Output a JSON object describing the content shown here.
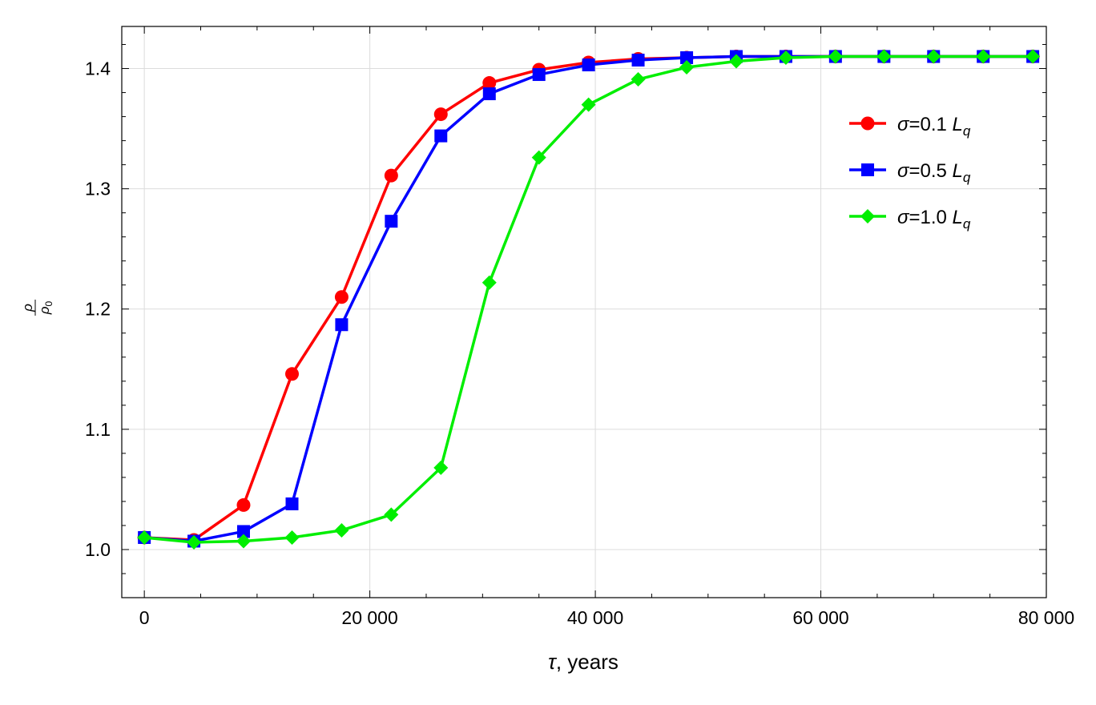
{
  "chart_data": {
    "type": "line",
    "xlabel": {
      "symbol": "τ",
      "text": ", years"
    },
    "ylabel": {
      "numerator": "ρ",
      "denominator_symbol": "ρ",
      "denominator_sub": "0"
    },
    "xlim": [
      -2000,
      80000
    ],
    "ylim": [
      0.96,
      1.435
    ],
    "x_ticks": [
      {
        "value": 0,
        "label": "0"
      },
      {
        "value": 20000,
        "label": "20 000"
      },
      {
        "value": 40000,
        "label": "40 000"
      },
      {
        "value": 60000,
        "label": "60 000"
      },
      {
        "value": 80000,
        "label": "80 000"
      }
    ],
    "y_ticks": [
      {
        "value": 1.0,
        "label": "1.0"
      },
      {
        "value": 1.1,
        "label": "1.1"
      },
      {
        "value": 1.2,
        "label": "1.2"
      },
      {
        "value": 1.3,
        "label": "1.3"
      },
      {
        "value": 1.4,
        "label": "1.4"
      }
    ],
    "grid": true,
    "legend_position": "top-right",
    "series": [
      {
        "name": {
          "symbol": "σ",
          "text": "=0.1 ",
          "unit_main": "L",
          "unit_sub": "q"
        },
        "color": "#ff0000",
        "marker": "circle",
        "x": [
          0,
          4400,
          8800,
          13100,
          17500,
          21900,
          26300,
          30600,
          35000,
          39400,
          43800,
          48100,
          52500,
          56900,
          61300,
          65600,
          70000,
          74400,
          78800
        ],
        "y": [
          1.01,
          1.008,
          1.037,
          1.146,
          1.21,
          1.311,
          1.362,
          1.388,
          1.399,
          1.405,
          1.408,
          1.409,
          1.41,
          1.41,
          1.41,
          1.41,
          1.41,
          1.41,
          1.41
        ]
      },
      {
        "name": {
          "symbol": "σ",
          "text": "=0.5 ",
          "unit_main": "L",
          "unit_sub": "q"
        },
        "color": "#0000ff",
        "marker": "square",
        "x": [
          0,
          4400,
          8800,
          13100,
          17500,
          21900,
          26300,
          30600,
          35000,
          39400,
          43800,
          48100,
          52500,
          56900,
          61300,
          65600,
          70000,
          74400,
          78800
        ],
        "y": [
          1.01,
          1.007,
          1.015,
          1.038,
          1.187,
          1.273,
          1.344,
          1.379,
          1.395,
          1.403,
          1.407,
          1.409,
          1.41,
          1.41,
          1.41,
          1.41,
          1.41,
          1.41,
          1.41
        ]
      },
      {
        "name": {
          "symbol": "σ",
          "text": "=1.0 ",
          "unit_main": "L",
          "unit_sub": "q"
        },
        "color": "#00ee00",
        "marker": "diamond",
        "x": [
          0,
          4400,
          8800,
          13100,
          17500,
          21900,
          26300,
          30600,
          35000,
          39400,
          43800,
          48100,
          52500,
          56900,
          61300,
          65600,
          70000,
          74400,
          78800
        ],
        "y": [
          1.01,
          1.006,
          1.007,
          1.01,
          1.016,
          1.029,
          1.068,
          1.222,
          1.326,
          1.37,
          1.391,
          1.401,
          1.406,
          1.409,
          1.41,
          1.41,
          1.41,
          1.41,
          1.41
        ]
      }
    ]
  }
}
